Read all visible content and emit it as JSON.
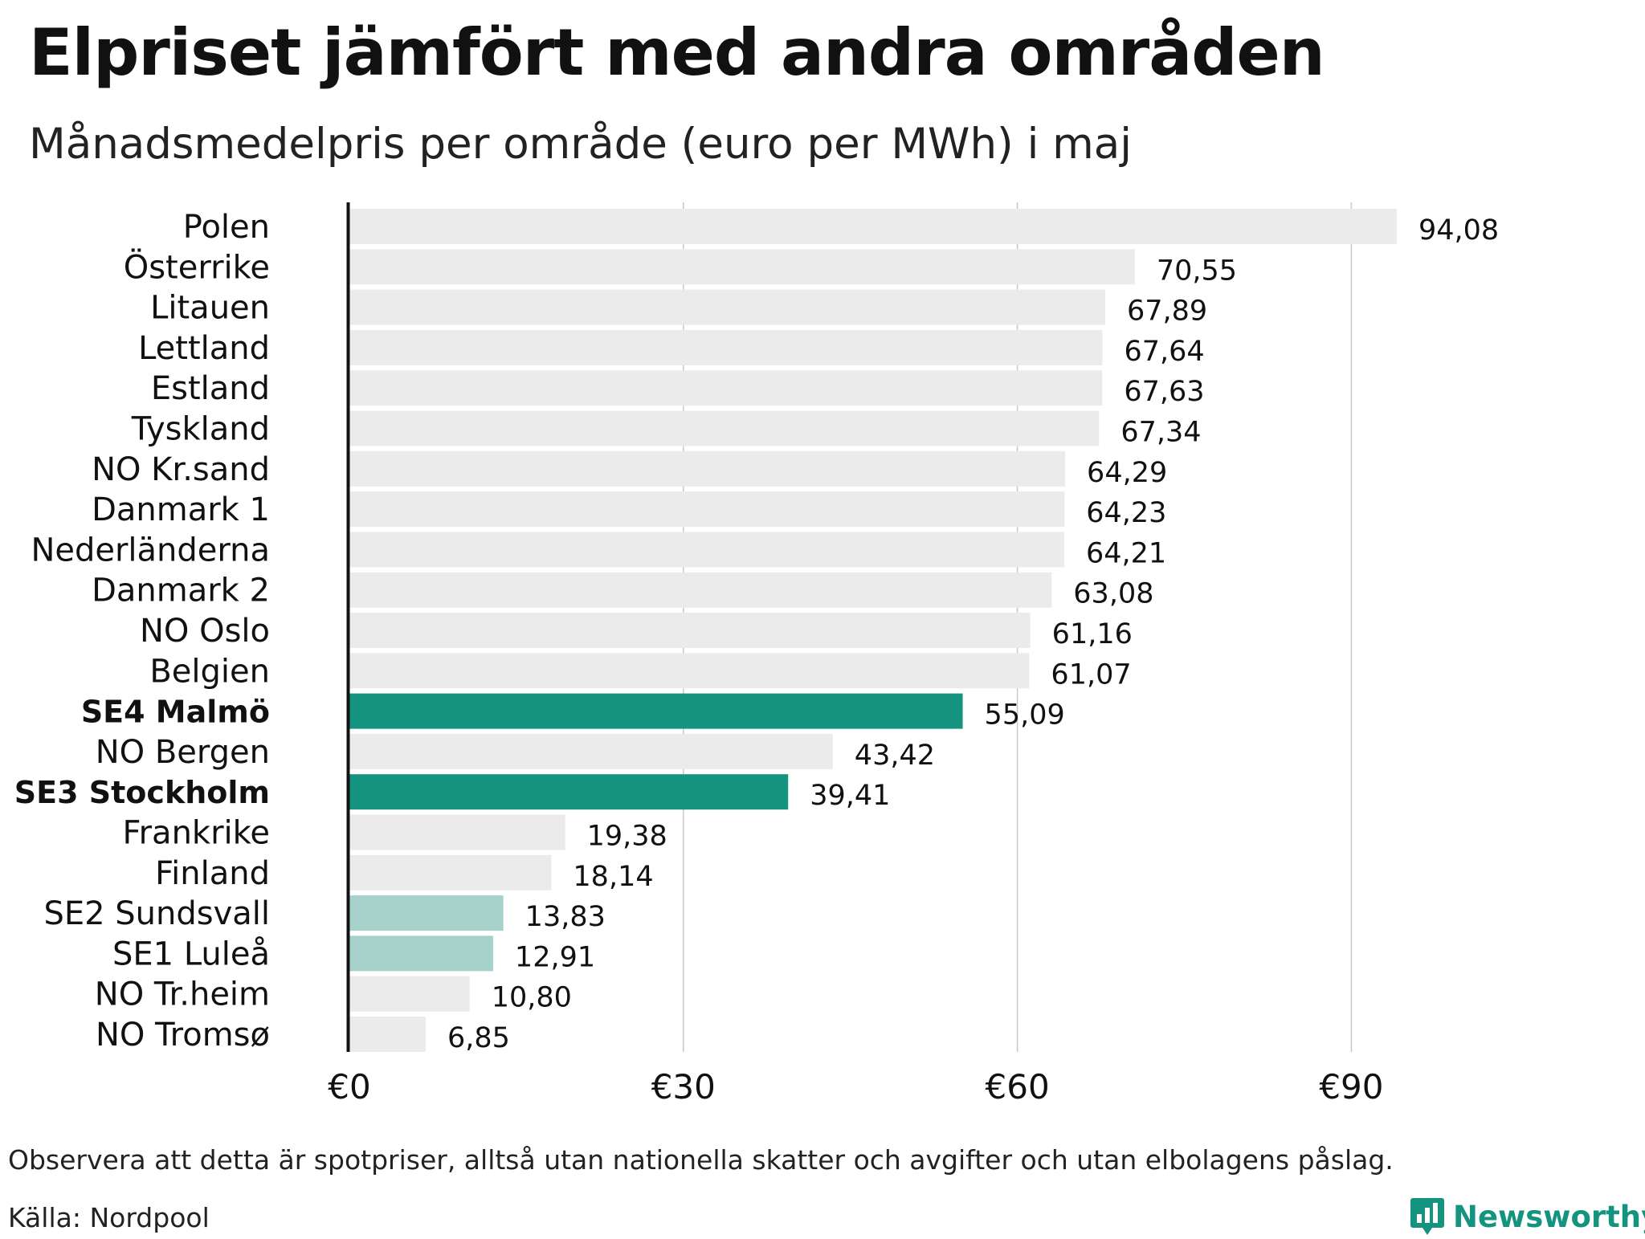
{
  "chart_data": {
    "type": "bar",
    "orientation": "horizontal",
    "title": "Elpriset jämfört med andra områden",
    "subtitle": "Månadsmedelpris per område (euro per MWh) i maj",
    "categories": [
      "Polen",
      "Österrike",
      "Litauen",
      "Lettland",
      "Estland",
      "Tyskland",
      "NO Kr.sand",
      "Danmark  1",
      "Nederländerna",
      "Danmark  2",
      "NO Oslo",
      "Belgien",
      "SE4 Malmö",
      "NO Bergen",
      "SE3 Stockholm",
      "Frankrike",
      "Finland",
      "SE2  Sundsvall",
      "SE1  Luleå",
      "NO Tr.heim",
      "NO Tromsø"
    ],
    "values": [
      94.08,
      70.55,
      67.89,
      67.64,
      67.63,
      67.34,
      64.29,
      64.23,
      64.21,
      63.08,
      61.16,
      61.07,
      55.09,
      43.42,
      39.41,
      19.38,
      18.14,
      13.83,
      12.91,
      10.8,
      6.85
    ],
    "value_labels": [
      "94,08",
      "70,55",
      "67,89",
      "67,64",
      "67,63",
      "67,34",
      "64,29",
      "64,23",
      "64,21",
      "63,08",
      "61,16",
      "61,07",
      "55,09",
      "43,42",
      "39,41",
      "19,38",
      "18,14",
      "13,83",
      "12,91",
      "10,80",
      "6,85"
    ],
    "highlight": [
      "default",
      "default",
      "default",
      "default",
      "default",
      "default",
      "default",
      "default",
      "default",
      "default",
      "default",
      "default",
      "strong",
      "default",
      "strong",
      "default",
      "default",
      "light",
      "light",
      "default",
      "default"
    ],
    "colors": {
      "default": "#ebebeb",
      "strong": "#14937f",
      "light": "#a7d2cc",
      "grid": "#c8c8c8",
      "axis": "#111111"
    },
    "xlim": [
      0,
      100
    ],
    "ticks": [
      0,
      30,
      60,
      90
    ],
    "tick_labels": [
      "€0",
      "€30",
      "€60",
      "€90"
    ],
    "grid": true
  },
  "footer": {
    "note": "Observera att detta är spotpriser, alltså utan nationella skatter och avgifter och utan elbolagens påslag.",
    "source": "Källa: Nordpool",
    "brand": "Newsworthy",
    "brand_icon": "newsworthy-chart-icon"
  }
}
